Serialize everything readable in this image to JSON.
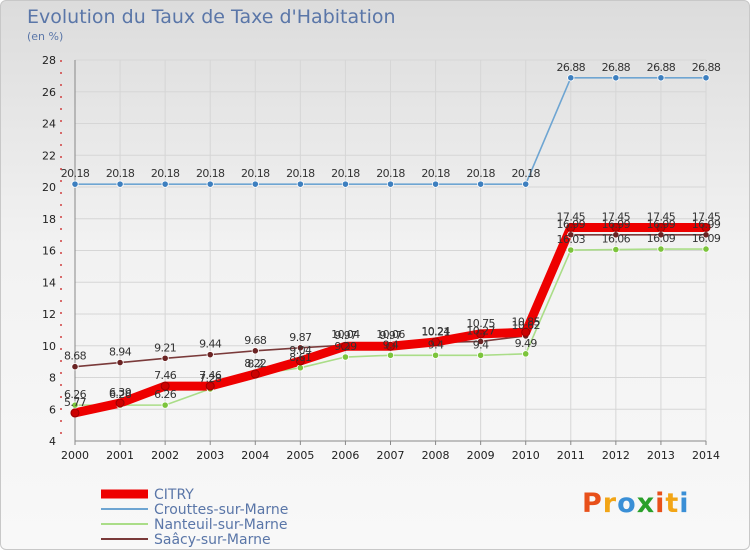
{
  "header": {
    "title": "Evolution du Taux de Taxe d'Habitation",
    "subtitle": "(en %)"
  },
  "logo": {
    "text": "Proxiti",
    "colors": [
      "#e8501a",
      "#f2a516",
      "#3a8fd6",
      "#2aa02a",
      "#e8501a",
      "#f2a516",
      "#3a8fd6"
    ]
  },
  "chart_data": {
    "type": "line",
    "x": [
      2000,
      2001,
      2002,
      2003,
      2004,
      2005,
      2006,
      2007,
      2008,
      2009,
      2010,
      2011,
      2012,
      2013,
      2014
    ],
    "xlabel": "",
    "ylabel": "",
    "ylim": [
      4,
      28
    ],
    "yticks": [
      4,
      6,
      8,
      10,
      12,
      14,
      16,
      18,
      20,
      22,
      24,
      26,
      28
    ],
    "grid": true,
    "legend_position": "bottom-left",
    "series": [
      {
        "name": "CITRY",
        "color": "#ee0000",
        "marker": "#cc0000",
        "values": [
          5.77,
          6.39,
          7.46,
          7.46,
          8.22,
          9.04,
          9.97,
          9.97,
          10.24,
          10.75,
          10.85,
          17.45,
          17.45,
          17.45,
          17.45
        ],
        "labels": [
          "5.77",
          "6.39",
          "7.46",
          "7.46",
          "8.22",
          "9.04",
          "9.97",
          "9.97",
          "10.24",
          "10.75",
          "10.85",
          "17.45",
          "17.45",
          "17.45",
          "17.45"
        ]
      },
      {
        "name": "Crouttes-sur-Marne",
        "color": "#6ea5d2",
        "marker": "#3d7fbf",
        "values": [
          20.18,
          20.18,
          20.18,
          20.18,
          20.18,
          20.18,
          20.18,
          20.18,
          20.18,
          20.18,
          20.18,
          26.88,
          26.88,
          26.88,
          26.88
        ],
        "labels": [
          "20.18",
          "20.18",
          "20.18",
          "20.18",
          "20.18",
          "20.18",
          "20.18",
          "20.18",
          "20.18",
          "20.18",
          "20.18",
          "26.88",
          "26.88",
          "26.88",
          "26.88"
        ]
      },
      {
        "name": "Nanteuil-sur-Marne",
        "color": "#aadd88",
        "marker": "#7cc43c",
        "values": [
          6.26,
          6.26,
          6.26,
          7.28,
          8.2,
          8.61,
          9.29,
          9.4,
          9.4,
          9.4,
          9.49,
          16.03,
          16.06,
          16.09,
          16.09
        ],
        "labels": [
          "6.26",
          "6.26",
          "6.26",
          "7.28",
          "8.2",
          "8.61",
          "9.29",
          "9.4",
          "9.4",
          "9.4",
          "9.49",
          "16.03",
          "16.06",
          "16.09",
          "16.09"
        ]
      },
      {
        "name": "Saâcy-sur-Marne",
        "color": "#7a3a3a",
        "marker": "#6a2323",
        "values": [
          8.68,
          8.94,
          9.21,
          9.44,
          9.68,
          9.87,
          10.04,
          10.06,
          10.21,
          10.27,
          10.62,
          16.99,
          16.99,
          16.99,
          16.99
        ],
        "labels": [
          "8.68",
          "8.94",
          "9.21",
          "9.44",
          "9.68",
          "9.87",
          "10.04",
          "10.06",
          "10.21",
          "10.27",
          "10.62",
          "16.99",
          "16.99",
          "16.99",
          "16.99"
        ]
      }
    ]
  }
}
